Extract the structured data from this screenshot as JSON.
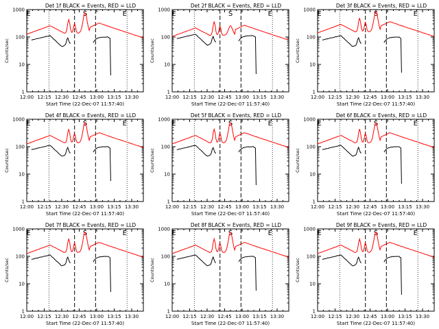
{
  "chart_data": [
    {
      "type": "line",
      "title": "Det 1f BLACK = Events, RED = LLD",
      "xlabel": "Start Time (22-Dec-07 11:57:40)",
      "ylabel": "Counts/sec",
      "x_tick_labels": [
        "12:00",
        "12:15",
        "12:30",
        "12:45",
        "13:00",
        "13:15",
        "13:30"
      ],
      "y_tick_labels": [
        "1",
        "10",
        "100",
        "1000"
      ],
      "ylim": [
        1,
        1000
      ],
      "y_scale": "log",
      "annotations": [
        "E",
        "S",
        "E"
      ],
      "series": [
        {
          "color": "#ff0000"
        },
        {
          "color": "#000000"
        }
      ]
    },
    {
      "type": "line",
      "title": "Det 2f BLACK = Events, RED = LLD",
      "xlabel": "Start Time (22-Dec-07 11:57:40)",
      "ylabel": "Counts/sec",
      "x_tick_labels": [
        "12:00",
        "12:15",
        "12:30",
        "12:45",
        "13:00",
        "13:15",
        "13:30"
      ],
      "y_tick_labels": [
        "1",
        "10",
        "100",
        "1000"
      ],
      "ylim": [
        1,
        1000
      ],
      "y_scale": "log",
      "annotations": [
        "E",
        "S",
        "E"
      ],
      "series": [
        {
          "color": "#ff0000"
        },
        {
          "color": "#000000"
        }
      ]
    },
    {
      "type": "line",
      "title": "Det 3f BLACK = Events, RED = LLD",
      "xlabel": "Start Time (22-Dec-07 11:57:40)",
      "ylabel": "Counts/sec",
      "x_tick_labels": [
        "12:00",
        "12:15",
        "12:30",
        "12:45",
        "13:00",
        "13:15",
        "13:30"
      ],
      "y_tick_labels": [
        "1",
        "10",
        "100",
        "1000"
      ],
      "ylim": [
        1,
        1000
      ],
      "y_scale": "log",
      "annotations": [
        "E",
        "S",
        "E"
      ],
      "series": [
        {
          "color": "#ff0000"
        },
        {
          "color": "#000000"
        }
      ]
    },
    {
      "type": "line",
      "title": "Det 4f BLACK = Events, RED = LLD",
      "xlabel": "Start Time (22-Dec-07 11:57:40)",
      "ylabel": "Counts/sec",
      "x_tick_labels": [
        "12:00",
        "12:15",
        "12:30",
        "12:45",
        "13:00",
        "13:15",
        "13:30"
      ],
      "y_tick_labels": [
        "1",
        "10",
        "100",
        "1000"
      ],
      "ylim": [
        1,
        1000
      ],
      "y_scale": "log",
      "annotations": [
        "E",
        "S",
        "E"
      ],
      "series": [
        {
          "color": "#ff0000"
        },
        {
          "color": "#000000"
        }
      ]
    },
    {
      "type": "line",
      "title": "Det 5f BLACK = Events, RED = LLD",
      "xlabel": "Start Time (22-Dec-07 11:57:40)",
      "ylabel": "Counts/sec",
      "x_tick_labels": [
        "12:00",
        "12:15",
        "12:30",
        "12:45",
        "13:00",
        "13:15",
        "13:30"
      ],
      "y_tick_labels": [
        "1",
        "10",
        "100",
        "1000"
      ],
      "ylim": [
        1,
        1000
      ],
      "y_scale": "log",
      "annotations": [
        "E",
        "S",
        "E"
      ],
      "series": [
        {
          "color": "#ff0000"
        },
        {
          "color": "#000000"
        }
      ]
    },
    {
      "type": "line",
      "title": "Det 6f BLACK = Events, RED = LLD",
      "xlabel": "Start Time (22-Dec-07 11:57:40)",
      "ylabel": "Counts/sec",
      "x_tick_labels": [
        "12:00",
        "12:15",
        "12:30",
        "12:45",
        "13:00",
        "13:15",
        "13:30"
      ],
      "y_tick_labels": [
        "1",
        "10",
        "100",
        "1000"
      ],
      "ylim": [
        1,
        1000
      ],
      "y_scale": "log",
      "annotations": [
        "E",
        "S",
        "E"
      ],
      "series": [
        {
          "color": "#ff0000"
        },
        {
          "color": "#000000"
        }
      ]
    },
    {
      "type": "line",
      "title": "Det 7f BLACK = Events, RED = LLD",
      "xlabel": "Start Time (22-Dec-07 11:57:40)",
      "ylabel": "Counts/sec",
      "x_tick_labels": [
        "12:00",
        "12:15",
        "12:30",
        "12:45",
        "13:00",
        "13:15",
        "13:30"
      ],
      "y_tick_labels": [
        "1",
        "10",
        "100",
        "1000"
      ],
      "ylim": [
        1,
        1000
      ],
      "y_scale": "log",
      "annotations": [
        "E",
        "S",
        "E"
      ],
      "series": [
        {
          "color": "#ff0000"
        },
        {
          "color": "#000000"
        }
      ]
    },
    {
      "type": "line",
      "title": "Det 8f BLACK = Events, RED = LLD",
      "xlabel": "Start Time (22-Dec-07 11:57:40)",
      "ylabel": "Counts/sec",
      "x_tick_labels": [
        "12:00",
        "12:15",
        "12:30",
        "12:45",
        "13:00",
        "13:15",
        "13:30"
      ],
      "y_tick_labels": [
        "1",
        "10",
        "100",
        "1000"
      ],
      "ylim": [
        1,
        1000
      ],
      "y_scale": "log",
      "annotations": [
        "E",
        "S",
        "E"
      ],
      "series": [
        {
          "color": "#ff0000"
        },
        {
          "color": "#000000"
        }
      ]
    },
    {
      "type": "line",
      "title": "Det 9f BLACK = Events, RED = LLD",
      "xlabel": "Start Time (22-Dec-07 11:57:40)",
      "ylabel": "Counts/sec",
      "x_tick_labels": [
        "12:00",
        "12:15",
        "12:30",
        "12:45",
        "13:00",
        "13:15",
        "13:30"
      ],
      "y_tick_labels": [
        "1",
        "10",
        "100",
        "1000"
      ],
      "ylim": [
        1,
        1000
      ],
      "y_scale": "log",
      "annotations": [
        "E",
        "S",
        "E"
      ],
      "series": [
        {
          "color": "#ff0000"
        },
        {
          "color": "#000000"
        }
      ]
    }
  ]
}
